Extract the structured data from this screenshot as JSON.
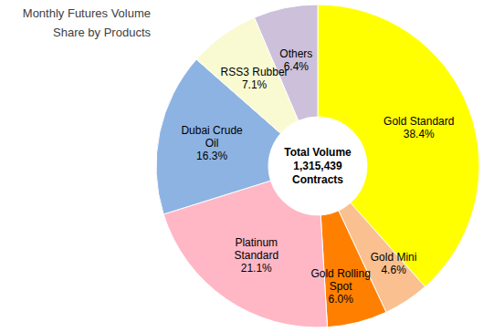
{
  "chart_data": {
    "type": "pie",
    "title": "Monthly Futures Volume",
    "subtitle": "Share by Products",
    "categories": [
      "Gold Standard",
      "Gold Mini",
      "Gold Rolling Spot",
      "Platinum Standard",
      "Dubai Crude Oil",
      "RSS3 Rubber",
      "Others"
    ],
    "values": [
      38.4,
      4.6,
      6.0,
      21.1,
      16.3,
      7.1,
      6.4
    ],
    "value_labels": [
      "38.4%",
      "4.6%",
      "6.0%",
      "21.1%",
      "16.3%",
      "7.1%",
      "6.4%"
    ],
    "colors": [
      "#ffff00",
      "#fac090",
      "#ff8000",
      "#ffb7c5",
      "#8db3e2",
      "#fafad2",
      "#ccc0da"
    ],
    "data_labels": true,
    "annotation": {
      "text": "Total Volume",
      "value": 1315439,
      "unit": "Contracts"
    }
  }
}
